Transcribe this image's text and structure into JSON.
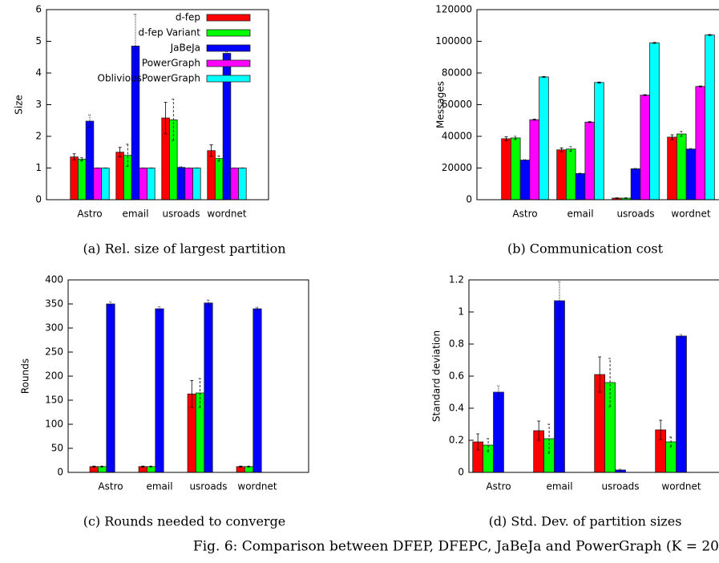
{
  "chart_data": [
    {
      "type": "bar",
      "ylabel": "Size",
      "caption": "(a) Rel. size of largest partition",
      "categories": [
        "Astro",
        "email",
        "usroads",
        "wordnet"
      ],
      "ylim": [
        0,
        6
      ],
      "yticks": [
        0,
        1,
        2,
        3,
        4,
        5,
        6
      ],
      "legend": "top-right",
      "series": [
        {
          "name": "d-fep",
          "color": "#ff0000",
          "values": [
            1.35,
            1.5,
            2.58,
            1.55
          ],
          "errors": [
            0.1,
            0.15,
            0.5,
            0.18
          ]
        },
        {
          "name": "d-fep Variant",
          "color": "#00ff00",
          "values": [
            1.28,
            1.4,
            2.52,
            1.3
          ],
          "errors": [
            0.05,
            0.35,
            0.65,
            0.08
          ]
        },
        {
          "name": "JaBeJa",
          "color": "#0000ff",
          "values": [
            2.48,
            4.85,
            1.02,
            4.62
          ],
          "errors": [
            0.2,
            1.0,
            0.02,
            0.05
          ]
        },
        {
          "name": "PowerGraph",
          "color": "#ff00ff",
          "values": [
            1.0,
            1.0,
            1.0,
            1.0
          ],
          "errors": [
            0,
            0,
            0,
            0
          ]
        },
        {
          "name": "ObliviousPowerGraph",
          "color": "#00ffff",
          "values": [
            1.0,
            1.0,
            1.0,
            1.0
          ],
          "errors": [
            0,
            0,
            0,
            0
          ]
        }
      ]
    },
    {
      "type": "bar",
      "ylabel": "Messages",
      "caption": "(b) Communication cost",
      "categories": [
        "Astro",
        "email",
        "usroads",
        "wordnet"
      ],
      "ylim": [
        0,
        120000
      ],
      "yticks": [
        0,
        20000,
        40000,
        60000,
        80000,
        100000,
        120000
      ],
      "series": [
        {
          "color": "#ff0000",
          "values": [
            38500,
            31500,
            1000,
            39500
          ],
          "errors": [
            1200,
            1200,
            200,
            1500
          ]
        },
        {
          "color": "#00ff00",
          "values": [
            39000,
            32000,
            1000,
            41500
          ],
          "errors": [
            1000,
            1500,
            200,
            1500
          ]
        },
        {
          "color": "#0000ff",
          "values": [
            25000,
            16500,
            19500,
            32000
          ],
          "errors": [
            300,
            300,
            300,
            300
          ]
        },
        {
          "color": "#ff00ff",
          "values": [
            50500,
            49000,
            66000,
            71500
          ],
          "errors": [
            300,
            300,
            300,
            300
          ]
        },
        {
          "color": "#00ffff",
          "values": [
            77500,
            74000,
            99000,
            104000
          ],
          "errors": [
            300,
            300,
            300,
            300
          ]
        }
      ]
    },
    {
      "type": "bar",
      "ylabel": "Rounds",
      "caption": "(c) Rounds needed to converge",
      "categories": [
        "Astro",
        "email",
        "usroads",
        "wordnet"
      ],
      "ylim": [
        0,
        400
      ],
      "yticks": [
        0,
        50,
        100,
        150,
        200,
        250,
        300,
        350,
        400
      ],
      "series": [
        {
          "color": "#ff0000",
          "values": [
            12,
            12,
            163,
            12
          ],
          "errors": [
            1,
            1,
            28,
            1
          ]
        },
        {
          "color": "#00ff00",
          "values": [
            12,
            12,
            165,
            12
          ],
          "errors": [
            1,
            1,
            30,
            1
          ]
        },
        {
          "color": "#0000ff",
          "values": [
            350,
            340,
            352,
            340
          ],
          "errors": [
            5,
            4,
            6,
            3
          ]
        },
        {
          "color": "#ff00ff",
          "values": [
            0,
            0,
            0,
            0
          ],
          "errors": [
            0,
            0,
            0,
            0
          ]
        },
        {
          "color": "#00ffff",
          "values": [
            0,
            0,
            0,
            0
          ],
          "errors": [
            0,
            0,
            0,
            0
          ]
        }
      ]
    },
    {
      "type": "bar",
      "ylabel": "Standard deviation",
      "caption": "(d) Std. Dev. of partition sizes",
      "categories": [
        "Astro",
        "email",
        "usroads",
        "wordnet"
      ],
      "ylim": [
        0,
        1.2
      ],
      "yticks": [
        0,
        0.2,
        0.4,
        0.6,
        0.8,
        1,
        1.2
      ],
      "series": [
        {
          "color": "#ff0000",
          "values": [
            0.19,
            0.26,
            0.61,
            0.265
          ],
          "errors": [
            0.05,
            0.06,
            0.11,
            0.06
          ]
        },
        {
          "color": "#00ff00",
          "values": [
            0.17,
            0.21,
            0.56,
            0.19
          ],
          "errors": [
            0.04,
            0.09,
            0.15,
            0.03
          ]
        },
        {
          "color": "#0000ff",
          "values": [
            0.5,
            1.07,
            0.015,
            0.85
          ],
          "errors": [
            0.04,
            0.12,
            0.005,
            0.01
          ]
        },
        {
          "color": "#ff00ff",
          "values": [
            0,
            0,
            0,
            0
          ],
          "errors": [
            0,
            0,
            0,
            0
          ]
        },
        {
          "color": "#00ffff",
          "values": [
            0,
            0,
            0,
            0
          ],
          "errors": [
            0,
            0,
            0,
            0
          ]
        }
      ]
    }
  ],
  "figure_caption": "Fig. 6: Comparison between DFEP, DFEPC, JaBeJa and PowerGraph (K = 20"
}
